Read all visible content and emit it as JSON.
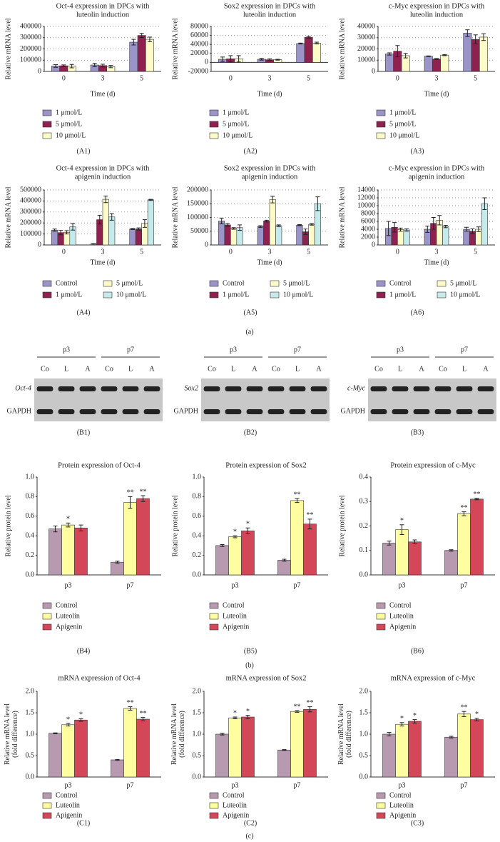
{
  "section_labels": [
    "(a)",
    "(b)",
    "(c)"
  ],
  "blots": [
    {
      "groups": [
        "p3",
        "p7"
      ],
      "lanes": [
        "Co",
        "L",
        "A",
        "Co",
        "L",
        "A"
      ],
      "rows": [
        "Oct-4",
        "GAPDH"
      ],
      "label": "(B1)"
    },
    {
      "groups": [
        "p3",
        "p7"
      ],
      "lanes": [
        "Co",
        "L",
        "A",
        "Co",
        "L",
        "A"
      ],
      "rows": [
        "Sox2",
        "GAPDH"
      ],
      "label": "(B2)"
    },
    {
      "groups": [
        "p3",
        "p7"
      ],
      "lanes": [
        "Co",
        "L",
        "A",
        "Co",
        "L",
        "A"
      ],
      "rows": [
        "c-Myc",
        "GAPDH"
      ],
      "label": "(B3)"
    }
  ],
  "chart_data": [
    {
      "type": "bar",
      "label": "(A1)",
      "title": [
        "Oct-4 expression in DPCs with",
        "luteolin induction"
      ],
      "y_label": [
        "Relative mRNA level"
      ],
      "x_label": "Time (d)",
      "grid": true,
      "categories": [
        "0",
        "3",
        "5"
      ],
      "ylim": [
        0,
        400000
      ],
      "yticks": [
        0,
        100000,
        200000,
        300000,
        400000
      ],
      "series": [
        {
          "name": "1 μmol/L",
          "color": "#9a94c8",
          "values": [
            48000,
            57000,
            260000
          ],
          "errors": [
            12000,
            15000,
            25000
          ]
        },
        {
          "name": "5 μmol/L",
          "color": "#8e2150",
          "values": [
            50000,
            52000,
            320000
          ],
          "errors": [
            8000,
            12000,
            18000
          ]
        },
        {
          "name": "10 μmol/L",
          "color": "#fdfbc8",
          "values": [
            47000,
            43000,
            285000
          ],
          "errors": [
            15000,
            10000,
            20000
          ]
        }
      ]
    },
    {
      "type": "bar",
      "label": "(A2)",
      "title": [
        "Sox2 expression in DPCs with",
        "luteolin induction"
      ],
      "y_label": [
        "Relative mRNA level"
      ],
      "x_label": "Time (d)",
      "grid": true,
      "categories": [
        "0",
        "3",
        "5"
      ],
      "ylim": [
        -20000,
        80000
      ],
      "yticks": [
        -20000,
        0,
        20000,
        40000,
        60000,
        80000
      ],
      "series": [
        {
          "name": "1 μmol/L",
          "color": "#9a94c8",
          "values": [
            7000,
            7000,
            42000
          ],
          "errors": [
            5000,
            2000,
            1000
          ]
        },
        {
          "name": "5 μmol/L",
          "color": "#8e2150",
          "values": [
            8000,
            6000,
            56000
          ],
          "errors": [
            7000,
            2000,
            2000
          ]
        },
        {
          "name": "10 μmol/L",
          "color": "#fdfbc8",
          "values": [
            8000,
            6000,
            43000
          ],
          "errors": [
            7000,
            1000,
            2000
          ]
        }
      ]
    },
    {
      "type": "bar",
      "label": "(A3)",
      "title": [
        "c-Myc expression in DPCs with",
        "luteolin induction"
      ],
      "y_label": [
        "Relative mRNA level"
      ],
      "x_label": "Time (d)",
      "grid": true,
      "categories": [
        "0",
        "3",
        "5"
      ],
      "ylim": [
        0,
        40000
      ],
      "yticks": [
        0,
        10000,
        20000,
        30000,
        40000
      ],
      "series": [
        {
          "name": "1 μmol/L",
          "color": "#9a94c8",
          "values": [
            15500,
            13500,
            34000
          ],
          "errors": [
            1000,
            300,
            3000
          ]
        },
        {
          "name": "5 μmol/L",
          "color": "#8e2150",
          "values": [
            18000,
            11000,
            28500
          ],
          "errors": [
            5000,
            500,
            4000
          ]
        },
        {
          "name": "10 μmol/L",
          "color": "#fdfbc8",
          "values": [
            14000,
            14500,
            30500
          ],
          "errors": [
            2000,
            500,
            3000
          ]
        }
      ]
    },
    {
      "type": "bar",
      "label": "(A4)",
      "title": [
        "Oct-4 expression in DPCs with",
        "apigenin induction"
      ],
      "y_label": [
        "Relative mRNA level"
      ],
      "x_label": "Time (d)",
      "grid": true,
      "categories": [
        "0",
        "3",
        "5"
      ],
      "ylim": [
        0,
        500000
      ],
      "yticks": [
        0,
        100000,
        200000,
        300000,
        400000,
        500000
      ],
      "series": [
        {
          "name": "Control",
          "color": "#9a94c8",
          "values": [
            135000,
            10000,
            145000
          ],
          "errors": [
            10000,
            2000,
            5000
          ]
        },
        {
          "name": "1 μmol/L",
          "color": "#8e2150",
          "values": [
            112000,
            230000,
            145000
          ],
          "errors": [
            20000,
            40000,
            10000
          ]
        },
        {
          "name": "5 μmol/L",
          "color": "#fdfbc8",
          "values": [
            115000,
            415000,
            195000
          ],
          "errors": [
            15000,
            30000,
            35000
          ]
        },
        {
          "name": "10 μmol/L",
          "color": "#c4eaec",
          "values": [
            165000,
            255000,
            410000
          ],
          "errors": [
            30000,
            30000,
            5000
          ]
        }
      ]
    },
    {
      "type": "bar",
      "label": "(A5)",
      "title": [
        "Sox2 expression in DPCs with",
        "apigenin induction"
      ],
      "y_label": [
        "Relative mRNA level"
      ],
      "x_label": "Time (d)",
      "grid": true,
      "categories": [
        "0",
        "3",
        "5"
      ],
      "ylim": [
        0,
        200000
      ],
      "yticks": [
        0,
        50000,
        100000,
        150000,
        200000
      ],
      "series": [
        {
          "name": "Control",
          "color": "#9a94c8",
          "values": [
            87000,
            67000,
            72000
          ],
          "errors": [
            10000,
            3000,
            2000
          ]
        },
        {
          "name": "1 μmol/L",
          "color": "#8e2150",
          "values": [
            73000,
            87000,
            48000
          ],
          "errors": [
            5000,
            3000,
            10000
          ]
        },
        {
          "name": "5 μmol/L",
          "color": "#fdfbc8",
          "values": [
            60000,
            165000,
            75000
          ],
          "errors": [
            3000,
            12000,
            3000
          ]
        },
        {
          "name": "10 μmol/L",
          "color": "#c4eaec",
          "values": [
            63000,
            70000,
            150000
          ],
          "errors": [
            10000,
            3000,
            25000
          ]
        }
      ]
    },
    {
      "type": "bar",
      "label": "(A6)",
      "title": [
        "c-Myc expression in DPCs with",
        "apigenin induction"
      ],
      "y_label": [
        "Relative mRNA level"
      ],
      "x_label": "Time (d)",
      "grid": true,
      "categories": [
        "0",
        "3",
        "5"
      ],
      "ylim": [
        0,
        14000
      ],
      "yticks": [
        0,
        2000,
        4000,
        6000,
        8000,
        10000,
        12000,
        14000
      ],
      "series": [
        {
          "name": "Control",
          "color": "#9a94c8",
          "values": [
            4200,
            4000,
            4000
          ],
          "errors": [
            1800,
            800,
            500
          ]
        },
        {
          "name": "1 μmol/L",
          "color": "#8e2150",
          "values": [
            4500,
            5500,
            3500
          ],
          "errors": [
            1200,
            1500,
            600
          ]
        },
        {
          "name": "5 μmol/L",
          "color": "#fdfbc8",
          "values": [
            3900,
            6300,
            4000
          ],
          "errors": [
            400,
            1200,
            600
          ]
        },
        {
          "name": "10 μmol/L",
          "color": "#c4eaec",
          "values": [
            3800,
            4700,
            10500
          ],
          "errors": [
            300,
            300,
            1500
          ]
        }
      ]
    },
    {
      "type": "bar",
      "label": "(B4)",
      "title": [
        "Protein expression of Oct-4"
      ],
      "y_label": [
        "Relative protein level"
      ],
      "grid": false,
      "categories": [
        "p3",
        "p7"
      ],
      "ylim": [
        0,
        1
      ],
      "yticks": [
        {
          "value": 0,
          "label": "0.0"
        },
        0.2,
        0.4,
        0.6,
        0.8,
        {
          "value": 1,
          "label": "1.0"
        }
      ],
      "series": [
        {
          "name": "Control",
          "color": "#b89ab0",
          "values": [
            0.47,
            0.13
          ],
          "errors": [
            0.03,
            0.01
          ],
          "significance": [
            null,
            null
          ]
        },
        {
          "name": "Luteolin",
          "color": "#fefea0",
          "values": [
            0.51,
            0.74
          ],
          "errors": [
            0.02,
            0.06
          ],
          "significance": [
            "*",
            "**"
          ]
        },
        {
          "name": "Apigenin",
          "color": "#d44759",
          "values": [
            0.48,
            0.78
          ],
          "errors": [
            0.03,
            0.03
          ],
          "significance": [
            null,
            "**"
          ]
        }
      ]
    },
    {
      "type": "bar",
      "label": "(B5)",
      "title": [
        "Protein expression of Sox2"
      ],
      "y_label": [
        "Relative protein level"
      ],
      "grid": false,
      "categories": [
        "p3",
        "p7"
      ],
      "ylim": [
        0,
        1
      ],
      "yticks": [
        {
          "value": 0,
          "label": "0.0"
        },
        0.2,
        0.4,
        0.6,
        0.8,
        {
          "value": 1,
          "label": "1.0"
        }
      ],
      "series": [
        {
          "name": "Control",
          "color": "#b89ab0",
          "values": [
            0.3,
            0.15
          ],
          "errors": [
            0.01,
            0.01
          ],
          "significance": [
            null,
            null
          ]
        },
        {
          "name": "Luteolin",
          "color": "#fefea0",
          "values": [
            0.39,
            0.76
          ],
          "errors": [
            0.01,
            0.02
          ],
          "significance": [
            "*",
            "**"
          ]
        },
        {
          "name": "Apigenin",
          "color": "#d44759",
          "values": [
            0.45,
            0.52
          ],
          "errors": [
            0.03,
            0.05
          ],
          "significance": [
            "*",
            "**"
          ]
        }
      ]
    },
    {
      "type": "bar",
      "label": "(B6)",
      "title": [
        "Protein expression of c-Myc"
      ],
      "y_label": [
        "Relative protein level"
      ],
      "grid": false,
      "categories": [
        "p3",
        "p7"
      ],
      "ylim": [
        0,
        0.4
      ],
      "yticks": [
        {
          "value": 0,
          "label": "0.0"
        },
        0.1,
        0.2,
        0.3,
        0.4
      ],
      "series": [
        {
          "name": "Control",
          "color": "#b89ab0",
          "values": [
            0.13,
            0.1
          ],
          "errors": [
            0.008,
            0.003
          ],
          "significance": [
            null,
            null
          ]
        },
        {
          "name": "Luteolin",
          "color": "#fefea0",
          "values": [
            0.185,
            0.25
          ],
          "errors": [
            0.02,
            0.008
          ],
          "significance": [
            "*",
            "**"
          ]
        },
        {
          "name": "Apigenin",
          "color": "#d44759",
          "values": [
            0.135,
            0.31
          ],
          "errors": [
            0.008,
            0.003
          ],
          "significance": [
            null,
            "**"
          ]
        }
      ]
    },
    {
      "type": "bar",
      "label": "(C1)",
      "title": [
        "mRNA expression of Oct-4"
      ],
      "y_label": [
        "Relative mRNA level",
        "(fold difference)"
      ],
      "grid": false,
      "categories": [
        "p3",
        "p7"
      ],
      "ylim": [
        0,
        2
      ],
      "yticks": [
        {
          "value": 0,
          "label": "0.0"
        },
        0.5,
        {
          "value": 1,
          "label": "1.0"
        },
        1.5,
        {
          "value": 2,
          "label": "2.0"
        }
      ],
      "series": [
        {
          "name": "Control",
          "color": "#b89ab0",
          "values": [
            1.02,
            0.4
          ],
          "errors": [
            0.01,
            0.01
          ],
          "significance": [
            null,
            null
          ]
        },
        {
          "name": "Luteolin",
          "color": "#fefea0",
          "values": [
            1.22,
            1.6
          ],
          "errors": [
            0.03,
            0.04
          ],
          "significance": [
            "*",
            "**"
          ]
        },
        {
          "name": "Apigenin",
          "color": "#d44759",
          "values": [
            1.33,
            1.35
          ],
          "errors": [
            0.03,
            0.04
          ],
          "significance": [
            "*",
            "**"
          ]
        }
      ]
    },
    {
      "type": "bar",
      "label": "(C2)",
      "title": [
        "mRNA expression of Sox2"
      ],
      "y_label": [
        "Relative mRNA level",
        "(fold difference)"
      ],
      "grid": false,
      "categories": [
        "p3",
        "p7"
      ],
      "ylim": [
        0,
        2
      ],
      "yticks": [
        {
          "value": 0,
          "label": "0.0"
        },
        0.5,
        {
          "value": 1,
          "label": "1.0"
        },
        1.5,
        {
          "value": 2,
          "label": "2.0"
        }
      ],
      "series": [
        {
          "name": "Control",
          "color": "#b89ab0",
          "values": [
            1.0,
            0.63
          ],
          "errors": [
            0.02,
            0.01
          ],
          "significance": [
            null,
            null
          ]
        },
        {
          "name": "Luteolin",
          "color": "#fefea0",
          "values": [
            1.38,
            1.53
          ],
          "errors": [
            0.02,
            0.02
          ],
          "significance": [
            "*",
            "**"
          ]
        },
        {
          "name": "Apigenin",
          "color": "#d44759",
          "values": [
            1.4,
            1.58
          ],
          "errors": [
            0.04,
            0.06
          ],
          "significance": [
            "*",
            "**"
          ]
        }
      ]
    },
    {
      "type": "bar",
      "label": "(C3)",
      "title": [
        "mRNA expression of c-Myc"
      ],
      "y_label": [
        "Relative mRNA level",
        "(fold difference)"
      ],
      "grid": false,
      "categories": [
        "p3",
        "p7"
      ],
      "ylim": [
        0,
        2
      ],
      "yticks": [
        {
          "value": 0,
          "label": "0.0"
        },
        0.5,
        {
          "value": 1,
          "label": "1.0"
        },
        1.5,
        {
          "value": 2,
          "label": "2.0"
        }
      ],
      "series": [
        {
          "name": "Control",
          "color": "#b89ab0",
          "values": [
            1.0,
            0.93
          ],
          "errors": [
            0.04,
            0.02
          ],
          "significance": [
            null,
            null
          ]
        },
        {
          "name": "Luteolin",
          "color": "#fefea0",
          "values": [
            1.23,
            1.47
          ],
          "errors": [
            0.04,
            0.06
          ],
          "significance": [
            "*",
            "**"
          ]
        },
        {
          "name": "Apigenin",
          "color": "#d44759",
          "values": [
            1.3,
            1.34
          ],
          "errors": [
            0.04,
            0.03
          ],
          "significance": [
            "*",
            "*"
          ]
        }
      ]
    }
  ]
}
